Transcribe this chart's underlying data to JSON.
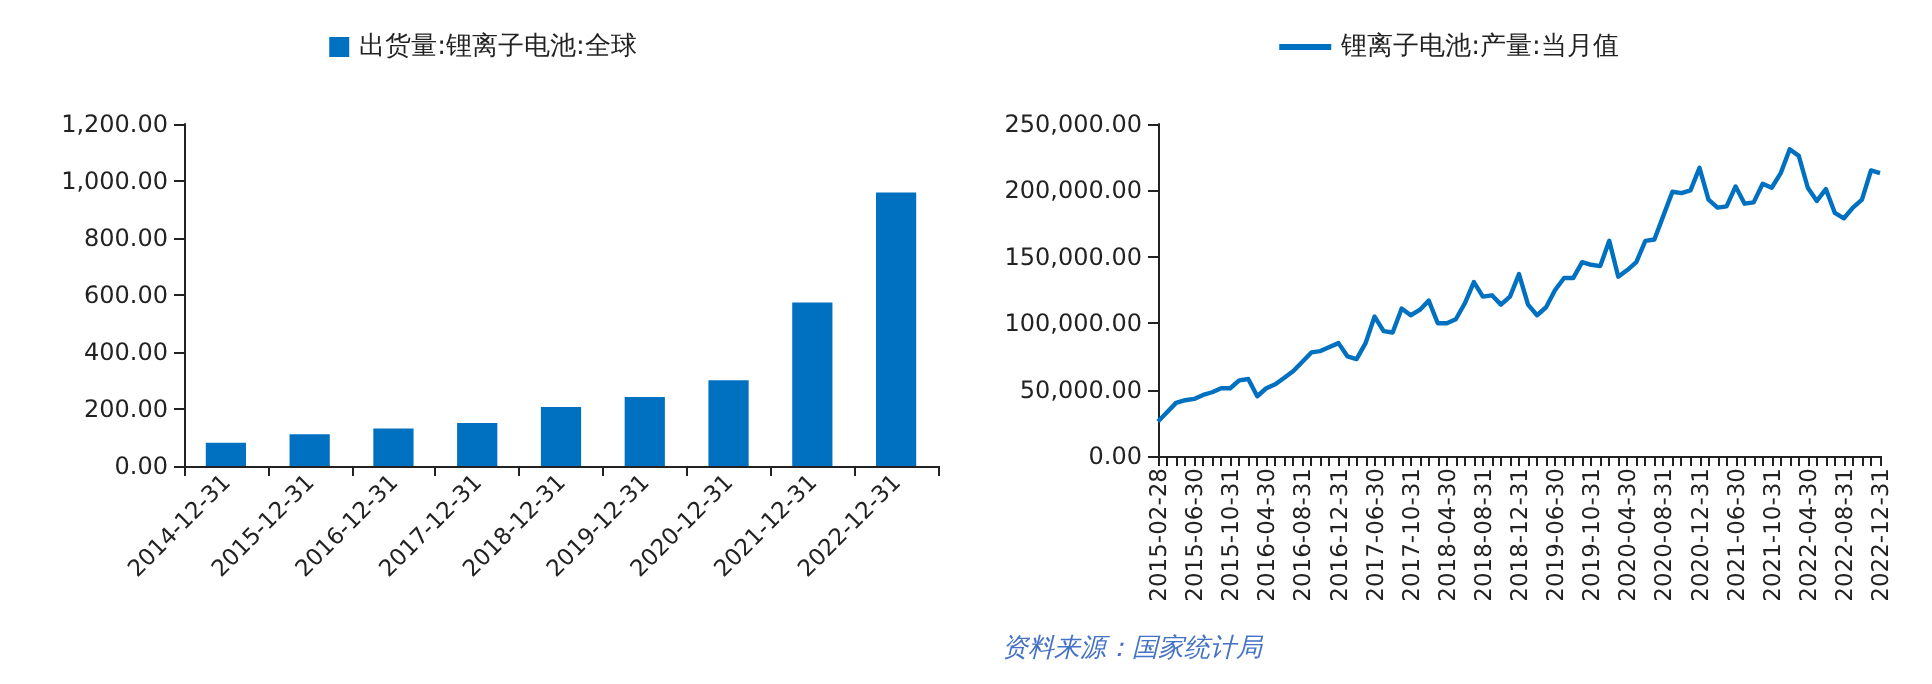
{
  "chart_data": [
    {
      "type": "bar",
      "categories": [
        "2014-12-31",
        "2015-12-31",
        "2016-12-31",
        "2017-12-31",
        "2018-12-31",
        "2019-12-31",
        "2020-12-31",
        "2021-12-31",
        "2022-12-31"
      ],
      "series": [
        {
          "name": "出货量:锂离子电池:全球",
          "color": "#0070c0",
          "values": [
            82,
            111,
            132,
            151,
            207,
            242,
            301,
            574,
            960
          ]
        }
      ],
      "ylim": [
        0,
        1200
      ],
      "yticks": [
        {
          "value": 0,
          "label": "0.00"
        },
        {
          "value": 200,
          "label": "200.00"
        },
        {
          "value": 400,
          "label": "400.00"
        },
        {
          "value": 600,
          "label": "600.00"
        },
        {
          "value": 800,
          "label": "800.00"
        },
        {
          "value": 1000,
          "label": "1,000.00"
        },
        {
          "value": 1200,
          "label": "1,200.00"
        }
      ],
      "grid": false,
      "legend": "top"
    },
    {
      "type": "line",
      "categories": [
        "2015-02-28",
        null,
        null,
        null,
        "2015-06-30",
        null,
        null,
        null,
        "2015-10-31",
        null,
        null,
        null,
        "2016-04-30",
        null,
        null,
        null,
        "2016-08-31",
        null,
        null,
        null,
        "2016-12-31",
        null,
        null,
        null,
        "2017-06-30",
        null,
        null,
        null,
        "2017-10-31",
        null,
        null,
        null,
        "2018-04-30",
        null,
        null,
        null,
        "2018-08-31",
        null,
        null,
        null,
        "2018-12-31",
        null,
        null,
        null,
        "2019-06-30",
        null,
        null,
        null,
        "2019-10-31",
        null,
        null,
        null,
        "2020-04-30",
        null,
        null,
        null,
        "2020-08-31",
        null,
        null,
        null,
        "2020-12-31",
        null,
        null,
        null,
        "2021-06-30",
        null,
        null,
        null,
        "2021-10-31",
        null,
        null,
        null,
        "2022-04-30",
        null,
        null,
        null,
        "2022-08-31",
        null,
        null,
        null,
        "2022-12-31"
      ],
      "series": [
        {
          "name": "锂离子电池:产量:当月值",
          "color": "#0070c0",
          "values": [
            26000,
            33000,
            40000,
            42000,
            43000,
            46000,
            48000,
            51000,
            51000,
            57000,
            58000,
            45000,
            51000,
            54000,
            59000,
            64000,
            71000,
            78000,
            79000,
            82000,
            85000,
            75000,
            73000,
            85000,
            105000,
            94000,
            93000,
            111000,
            106000,
            110000,
            117000,
            100000,
            100000,
            103000,
            115000,
            131000,
            120000,
            121000,
            114000,
            120000,
            137000,
            114000,
            106000,
            112000,
            125000,
            134000,
            134000,
            146000,
            144000,
            143000,
            162000,
            135000,
            140000,
            146000,
            162000,
            163000,
            181000,
            199000,
            198000,
            200000,
            217000,
            193000,
            187000,
            188000,
            203000,
            190000,
            191000,
            205000,
            202000,
            213000,
            231000,
            226000,
            202000,
            192000,
            201000,
            183000,
            179000,
            187000,
            193000,
            215000,
            213000
          ]
        }
      ],
      "ylim": [
        0,
        250000
      ],
      "yticks": [
        {
          "value": 0,
          "label": "0.00"
        },
        {
          "value": 50000,
          "label": "50,000.00"
        },
        {
          "value": 100000,
          "label": "100,000.00"
        },
        {
          "value": 150000,
          "label": "150,000.00"
        },
        {
          "value": 200000,
          "label": "200,000.00"
        },
        {
          "value": 250000,
          "label": "250,000.00"
        }
      ],
      "grid": false,
      "legend": "top",
      "marker": "none",
      "line_style": "solid",
      "annotations": [
        "资料来源：国家统计局"
      ]
    }
  ]
}
